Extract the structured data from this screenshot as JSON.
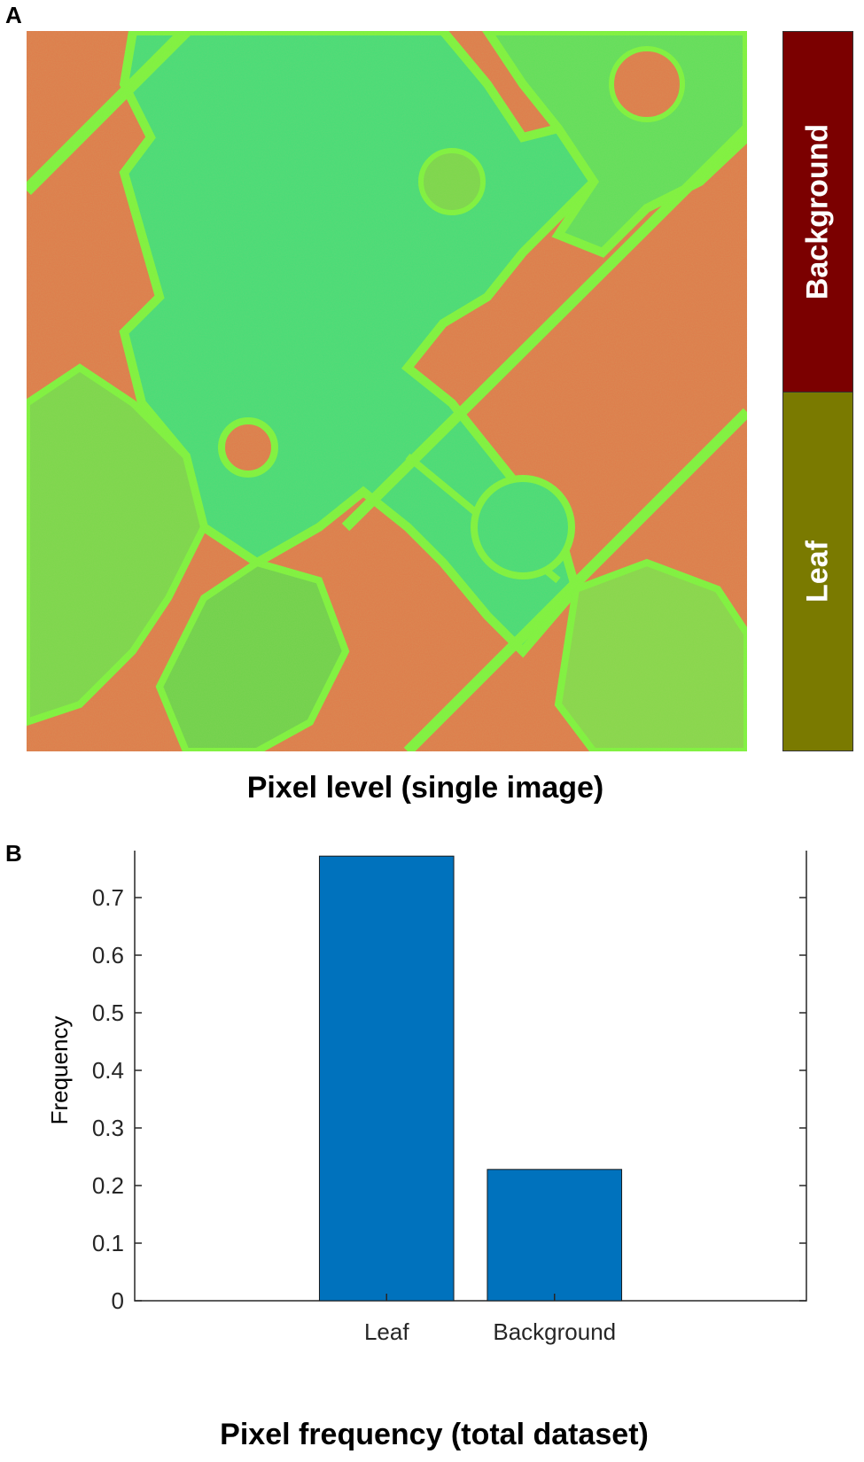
{
  "panel_a": {
    "letter": "A",
    "caption": "Pixel level (single image)",
    "legend": {
      "top": {
        "label": "Background",
        "color": "#7b0000"
      },
      "bottom": {
        "label": "Leaf",
        "color": "#7a7a00"
      }
    },
    "image_colors": {
      "leaf": "#44dd66",
      "background": "#e07a4a",
      "edge": "#7cf53c"
    }
  },
  "panel_b": {
    "letter": "B",
    "caption": "Pixel frequency (total dataset)"
  },
  "chart_data": {
    "type": "bar",
    "categories": [
      "Leaf",
      "Background"
    ],
    "values": [
      0.772,
      0.228
    ],
    "title": "",
    "xlabel": "Pixel frequency (total dataset)",
    "ylabel": "Frequency",
    "ylim": [
      0,
      0.8
    ],
    "yticks": [
      "0",
      "0.1",
      "0.2",
      "0.3",
      "0.4",
      "0.5",
      "0.6",
      "0.7",
      "0.8"
    ],
    "bar_color": "#0072bd",
    "grid": false
  }
}
